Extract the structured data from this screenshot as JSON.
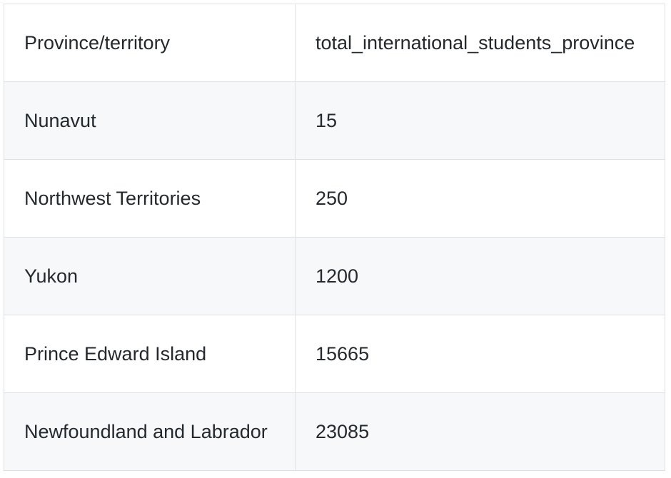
{
  "chart_data": {
    "type": "table",
    "columns": [
      "Province/territory",
      "total_international_students_province"
    ],
    "rows": [
      [
        "Nunavut",
        "15"
      ],
      [
        "Northwest Territories",
        "250"
      ],
      [
        "Yukon",
        "1200"
      ],
      [
        "Prince Edward Island",
        "15665"
      ],
      [
        "Newfoundland and Labrador",
        "23085"
      ]
    ]
  }
}
